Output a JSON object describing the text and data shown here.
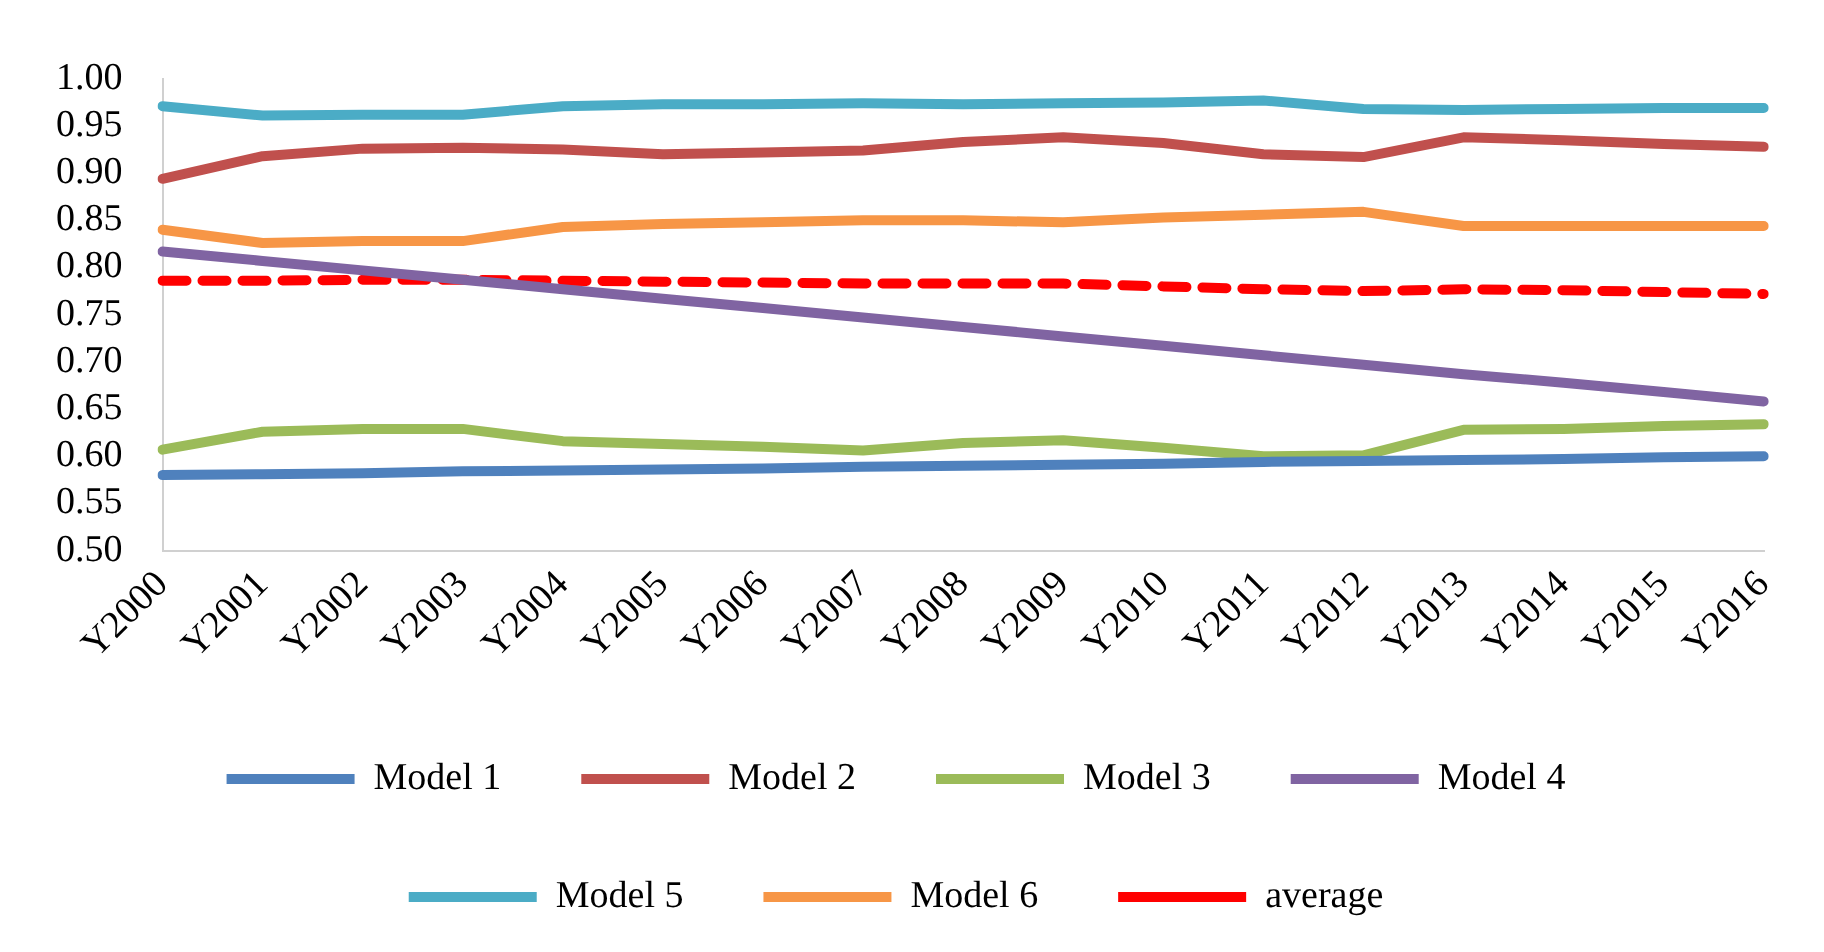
{
  "chart_data": {
    "type": "line",
    "categories": [
      "Y2000",
      "Y2001",
      "Y2002",
      "Y2003",
      "Y2004",
      "Y2005",
      "Y2006",
      "Y2007",
      "Y2008",
      "Y2009",
      "Y2010",
      "Y2011",
      "Y2012",
      "Y2013",
      "Y2014",
      "Y2015",
      "Y2016"
    ],
    "series": [
      {
        "name": "Model 1",
        "color": "#4f81bd",
        "values": [
          0.58,
          0.581,
          0.582,
          0.584,
          0.585,
          0.586,
          0.587,
          0.589,
          0.59,
          0.591,
          0.592,
          0.594,
          0.595,
          0.596,
          0.597,
          0.599,
          0.6
        ]
      },
      {
        "name": "Model 2",
        "color": "#c0504d",
        "values": [
          0.894,
          0.918,
          0.926,
          0.927,
          0.925,
          0.92,
          0.922,
          0.924,
          0.933,
          0.938,
          0.932,
          0.92,
          0.917,
          0.938,
          0.935,
          0.931,
          0.928
        ]
      },
      {
        "name": "Model 3",
        "color": "#9bbb59",
        "values": [
          0.607,
          0.626,
          0.629,
          0.629,
          0.616,
          0.613,
          0.61,
          0.606,
          0.614,
          0.617,
          0.609,
          0.6,
          0.601,
          0.628,
          0.629,
          0.632,
          0.634
        ]
      },
      {
        "name": "Model 4",
        "color": "#8064a2",
        "values": [
          0.817,
          0.807,
          0.797,
          0.787,
          0.777,
          0.767,
          0.757,
          0.747,
          0.737,
          0.727,
          0.717,
          0.707,
          0.697,
          0.687,
          0.678,
          0.668,
          0.658
        ]
      },
      {
        "name": "Model 5",
        "color": "#4bacc6",
        "values": [
          0.971,
          0.961,
          0.962,
          0.962,
          0.971,
          0.973,
          0.973,
          0.974,
          0.973,
          0.974,
          0.975,
          0.977,
          0.968,
          0.967,
          0.968,
          0.969,
          0.969
        ]
      },
      {
        "name": "Model 6",
        "color": "#f79646",
        "values": [
          0.84,
          0.826,
          0.828,
          0.828,
          0.843,
          0.846,
          0.848,
          0.85,
          0.85,
          0.848,
          0.853,
          0.856,
          0.859,
          0.844,
          0.844,
          0.844,
          0.844
        ]
      },
      {
        "name": "average",
        "color": "#ff0000",
        "line_style": "dashed",
        "values": [
          0.786,
          0.786,
          0.787,
          0.787,
          0.786,
          0.785,
          0.784,
          0.783,
          0.783,
          0.783,
          0.78,
          0.777,
          0.775,
          0.777,
          0.776,
          0.774,
          0.772
        ]
      }
    ],
    "ylim": [
      0.5,
      1.0
    ],
    "yticks": [
      {
        "value": 0.5,
        "label": "0.50"
      },
      {
        "value": 0.55,
        "label": "0.55"
      },
      {
        "value": 0.6,
        "label": "0.60"
      },
      {
        "value": 0.65,
        "label": "0.65"
      },
      {
        "value": 0.7,
        "label": "0.70"
      },
      {
        "value": 0.75,
        "label": "0.75"
      },
      {
        "value": 0.8,
        "label": "0.80"
      },
      {
        "value": 0.85,
        "label": "0.85"
      },
      {
        "value": 0.9,
        "label": "0.90"
      },
      {
        "value": 0.95,
        "label": "0.95"
      },
      {
        "value": 1.0,
        "label": "1.00"
      }
    ],
    "grid": false,
    "legend": "bottom",
    "marker": "none",
    "line_style": "solid"
  }
}
